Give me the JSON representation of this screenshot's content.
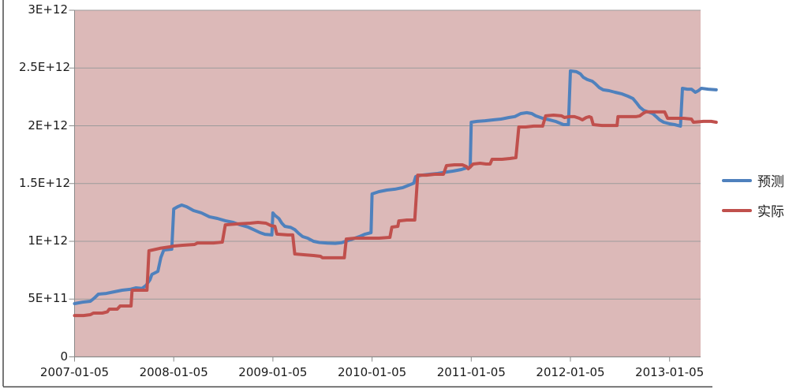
{
  "chart_data": {
    "type": "line",
    "title": "",
    "legend_position": "right",
    "plot_bg": "#dcb9b8",
    "grid_color": "#9b9b9b",
    "axis_color": "#8a8a8a",
    "frame_color": "#4a4a4a",
    "label_color": "#1a1a1a",
    "y_unit": "1e9",
    "y_axis": {
      "range": [
        0,
        3000
      ],
      "ticks": [
        {
          "value": 0,
          "label": "0"
        },
        {
          "value": 500,
          "label": "5E+11"
        },
        {
          "value": 1000,
          "label": "1E+12"
        },
        {
          "value": 1500,
          "label": "1.5E+12"
        },
        {
          "value": 2000,
          "label": "2E+12"
        },
        {
          "value": 2500,
          "label": "2.5E+12"
        },
        {
          "value": 3000,
          "label": "3E+12"
        }
      ]
    },
    "x_axis": {
      "range": [
        2007.0,
        2013.32
      ],
      "ticks": [
        {
          "value": 2007,
          "label": "2007-01-05"
        },
        {
          "value": 2008,
          "label": "2008-01-05"
        },
        {
          "value": 2009,
          "label": "2009-01-05"
        },
        {
          "value": 2010,
          "label": "2010-01-05"
        },
        {
          "value": 2011,
          "label": "2011-01-05"
        },
        {
          "value": 2012,
          "label": "2012-01-05"
        },
        {
          "value": 2013,
          "label": "2013-01-05"
        }
      ]
    },
    "series": [
      {
        "name": "预测",
        "color": "#4F81BD",
        "points": [
          [
            2007.0,
            461
          ],
          [
            2007.08,
            474
          ],
          [
            2007.16,
            481
          ],
          [
            2007.2,
            509
          ],
          [
            2007.24,
            543
          ],
          [
            2007.32,
            549
          ],
          [
            2007.4,
            563
          ],
          [
            2007.48,
            577
          ],
          [
            2007.56,
            584
          ],
          [
            2007.62,
            597
          ],
          [
            2007.68,
            592
          ],
          [
            2007.72,
            618
          ],
          [
            2007.76,
            666
          ],
          [
            2007.78,
            713
          ],
          [
            2007.84,
            740
          ],
          [
            2007.87,
            860
          ],
          [
            2007.9,
            925
          ],
          [
            2007.98,
            932
          ],
          [
            2008.0,
            1280
          ],
          [
            2008.04,
            1300
          ],
          [
            2008.08,
            1314
          ],
          [
            2008.13,
            1300
          ],
          [
            2008.2,
            1266
          ],
          [
            2008.28,
            1246
          ],
          [
            2008.36,
            1212
          ],
          [
            2008.44,
            1198
          ],
          [
            2008.52,
            1178
          ],
          [
            2008.6,
            1164
          ],
          [
            2008.67,
            1143
          ],
          [
            2008.75,
            1123
          ],
          [
            2008.81,
            1100
          ],
          [
            2008.87,
            1075
          ],
          [
            2008.92,
            1061
          ],
          [
            2008.99,
            1055
          ],
          [
            2009.0,
            1246
          ],
          [
            2009.02,
            1225
          ],
          [
            2009.06,
            1198
          ],
          [
            2009.09,
            1157
          ],
          [
            2009.12,
            1130
          ],
          [
            2009.18,
            1120
          ],
          [
            2009.22,
            1102
          ],
          [
            2009.26,
            1068
          ],
          [
            2009.3,
            1041
          ],
          [
            2009.35,
            1027
          ],
          [
            2009.41,
            1000
          ],
          [
            2009.47,
            990
          ],
          [
            2009.55,
            984
          ],
          [
            2009.63,
            982
          ],
          [
            2009.69,
            988
          ],
          [
            2009.75,
            1005
          ],
          [
            2009.81,
            1022
          ],
          [
            2009.88,
            1044
          ],
          [
            2009.93,
            1062
          ],
          [
            2009.99,
            1075
          ],
          [
            2010.0,
            1410
          ],
          [
            2010.07,
            1430
          ],
          [
            2010.15,
            1444
          ],
          [
            2010.23,
            1451
          ],
          [
            2010.31,
            1465
          ],
          [
            2010.37,
            1485
          ],
          [
            2010.42,
            1503
          ],
          [
            2010.44,
            1560
          ],
          [
            2010.5,
            1573
          ],
          [
            2010.58,
            1580
          ],
          [
            2010.66,
            1587
          ],
          [
            2010.74,
            1598
          ],
          [
            2010.82,
            1608
          ],
          [
            2010.9,
            1621
          ],
          [
            2010.95,
            1635
          ],
          [
            2010.99,
            1642
          ],
          [
            2011.0,
            2031
          ],
          [
            2011.06,
            2038
          ],
          [
            2011.14,
            2044
          ],
          [
            2011.22,
            2051
          ],
          [
            2011.3,
            2058
          ],
          [
            2011.38,
            2072
          ],
          [
            2011.44,
            2080
          ],
          [
            2011.5,
            2106
          ],
          [
            2011.56,
            2113
          ],
          [
            2011.61,
            2106
          ],
          [
            2011.65,
            2086
          ],
          [
            2011.72,
            2065
          ],
          [
            2011.79,
            2051
          ],
          [
            2011.85,
            2038
          ],
          [
            2011.89,
            2024
          ],
          [
            2011.93,
            2010
          ],
          [
            2011.98,
            2010
          ],
          [
            2012.0,
            2475
          ],
          [
            2012.06,
            2468
          ],
          [
            2012.1,
            2450
          ],
          [
            2012.13,
            2420
          ],
          [
            2012.17,
            2400
          ],
          [
            2012.22,
            2386
          ],
          [
            2012.25,
            2365
          ],
          [
            2012.29,
            2331
          ],
          [
            2012.33,
            2311
          ],
          [
            2012.39,
            2304
          ],
          [
            2012.45,
            2290
          ],
          [
            2012.52,
            2276
          ],
          [
            2012.58,
            2256
          ],
          [
            2012.63,
            2236
          ],
          [
            2012.67,
            2195
          ],
          [
            2012.7,
            2161
          ],
          [
            2012.74,
            2133
          ],
          [
            2012.79,
            2119
          ],
          [
            2012.83,
            2106
          ],
          [
            2012.87,
            2075
          ],
          [
            2012.9,
            2051
          ],
          [
            2012.94,
            2031
          ],
          [
            2013.0,
            2017
          ],
          [
            2013.05,
            2010
          ],
          [
            2013.11,
            1997
          ],
          [
            2013.13,
            2324
          ],
          [
            2013.18,
            2317
          ],
          [
            2013.22,
            2317
          ],
          [
            2013.26,
            2290
          ],
          [
            2013.29,
            2304
          ],
          [
            2013.32,
            2324
          ],
          [
            2013.39,
            2317
          ],
          [
            2013.47,
            2311
          ]
        ]
      },
      {
        "name": "实际",
        "color": "#C0504D",
        "points": [
          [
            2007.0,
            358
          ],
          [
            2007.09,
            358
          ],
          [
            2007.16,
            365
          ],
          [
            2007.19,
            379
          ],
          [
            2007.28,
            379
          ],
          [
            2007.33,
            390
          ],
          [
            2007.35,
            413
          ],
          [
            2007.43,
            413
          ],
          [
            2007.46,
            440
          ],
          [
            2007.57,
            440
          ],
          [
            2007.58,
            577
          ],
          [
            2007.73,
            577
          ],
          [
            2007.75,
            918
          ],
          [
            2007.86,
            939
          ],
          [
            2007.96,
            952
          ],
          [
            2008.0,
            959
          ],
          [
            2008.09,
            966
          ],
          [
            2008.21,
            973
          ],
          [
            2008.24,
            986
          ],
          [
            2008.4,
            986
          ],
          [
            2008.49,
            993
          ],
          [
            2008.52,
            1143
          ],
          [
            2008.63,
            1150
          ],
          [
            2008.77,
            1157
          ],
          [
            2008.85,
            1164
          ],
          [
            2008.93,
            1157
          ],
          [
            2008.98,
            1136
          ],
          [
            2009.02,
            1130
          ],
          [
            2009.04,
            1062
          ],
          [
            2009.15,
            1055
          ],
          [
            2009.2,
            1055
          ],
          [
            2009.22,
            891
          ],
          [
            2009.31,
            884
          ],
          [
            2009.41,
            877
          ],
          [
            2009.48,
            870
          ],
          [
            2009.5,
            857
          ],
          [
            2009.61,
            857
          ],
          [
            2009.72,
            857
          ],
          [
            2009.74,
            1020
          ],
          [
            2009.83,
            1027
          ],
          [
            2009.95,
            1027
          ],
          [
            2010.07,
            1027
          ],
          [
            2010.18,
            1034
          ],
          [
            2010.2,
            1123
          ],
          [
            2010.26,
            1130
          ],
          [
            2010.27,
            1177
          ],
          [
            2010.35,
            1184
          ],
          [
            2010.43,
            1184
          ],
          [
            2010.46,
            1573
          ],
          [
            2010.55,
            1573
          ],
          [
            2010.63,
            1580
          ],
          [
            2010.72,
            1580
          ],
          [
            2010.75,
            1655
          ],
          [
            2010.83,
            1662
          ],
          [
            2010.91,
            1662
          ],
          [
            2010.95,
            1648
          ],
          [
            2010.97,
            1628
          ],
          [
            2011.02,
            1669
          ],
          [
            2011.09,
            1676
          ],
          [
            2011.15,
            1669
          ],
          [
            2011.19,
            1669
          ],
          [
            2011.21,
            1710
          ],
          [
            2011.31,
            1710
          ],
          [
            2011.39,
            1717
          ],
          [
            2011.45,
            1724
          ],
          [
            2011.48,
            1990
          ],
          [
            2011.55,
            1990
          ],
          [
            2011.63,
            1997
          ],
          [
            2011.72,
            1997
          ],
          [
            2011.75,
            2086
          ],
          [
            2011.83,
            2092
          ],
          [
            2011.91,
            2086
          ],
          [
            2011.94,
            2072
          ],
          [
            2011.99,
            2079
          ],
          [
            2012.04,
            2079
          ],
          [
            2012.09,
            2065
          ],
          [
            2012.12,
            2051
          ],
          [
            2012.16,
            2072
          ],
          [
            2012.19,
            2079
          ],
          [
            2012.21,
            2072
          ],
          [
            2012.23,
            2010
          ],
          [
            2012.32,
            2003
          ],
          [
            2012.41,
            2003
          ],
          [
            2012.47,
            2003
          ],
          [
            2012.48,
            2079
          ],
          [
            2012.58,
            2079
          ],
          [
            2012.66,
            2079
          ],
          [
            2012.7,
            2086
          ],
          [
            2012.73,
            2106
          ],
          [
            2012.76,
            2120
          ],
          [
            2012.86,
            2120
          ],
          [
            2012.95,
            2120
          ],
          [
            2012.98,
            2065
          ],
          [
            2013.06,
            2065
          ],
          [
            2013.14,
            2065
          ],
          [
            2013.22,
            2058
          ],
          [
            2013.24,
            2031
          ],
          [
            2013.34,
            2038
          ],
          [
            2013.42,
            2038
          ],
          [
            2013.47,
            2031
          ]
        ]
      }
    ]
  }
}
